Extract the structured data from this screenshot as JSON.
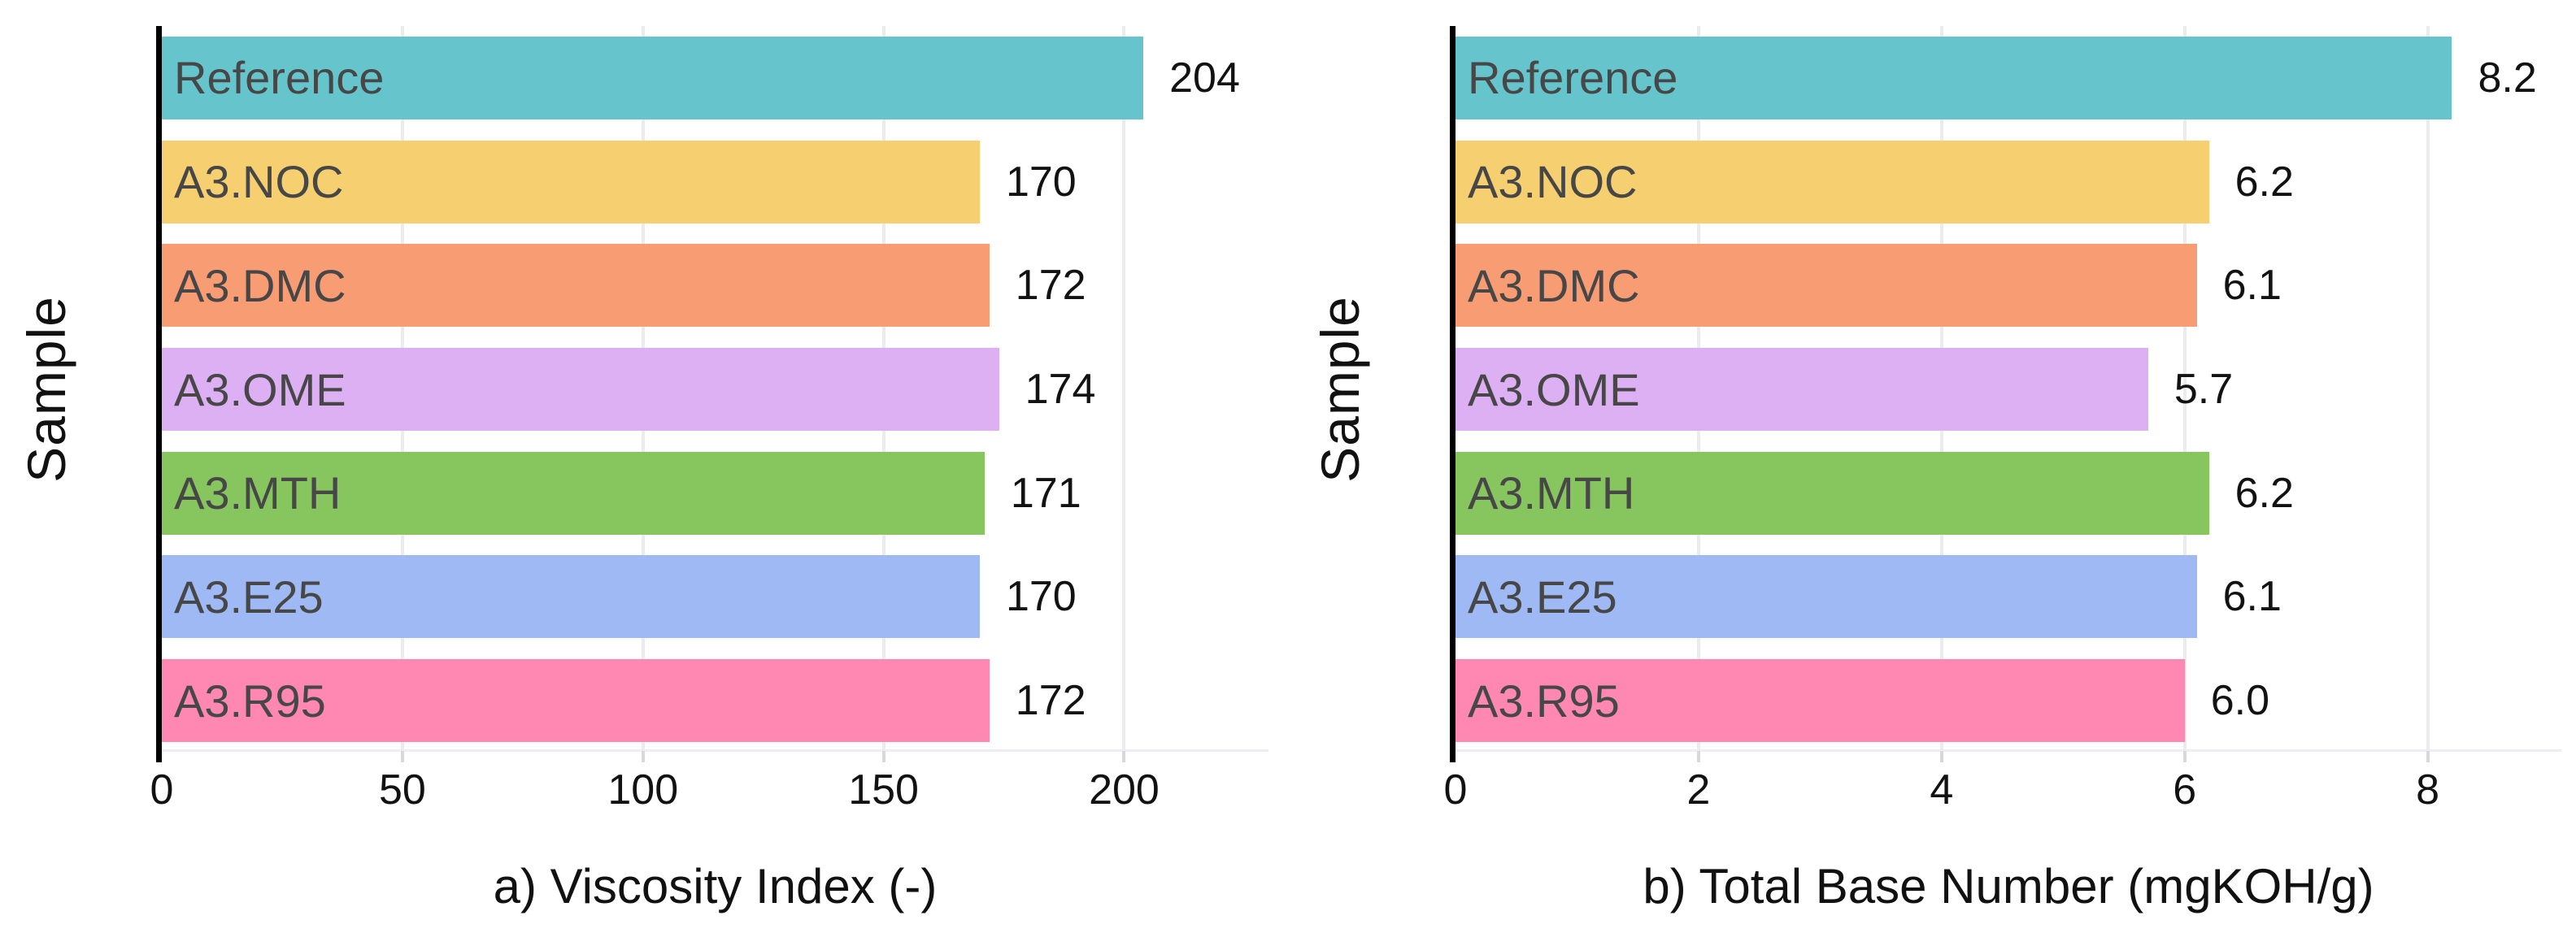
{
  "figure": {
    "background": "#ffffff",
    "text_color": "#111111",
    "bar_label_color": "#474747",
    "grid_color": "#ebebf0",
    "axis_line_color": "#000000"
  },
  "chart_data": [
    {
      "type": "bar",
      "orientation": "horizontal",
      "title": "a) Viscosity Index (-)",
      "ylabel": "Sample",
      "categories": [
        "Reference",
        "A3.NOC",
        "A3.DMC",
        "A3.OME",
        "A3.MTH",
        "A3.E25",
        "A3.R95"
      ],
      "values": [
        204,
        170,
        172,
        174,
        171,
        170,
        172
      ],
      "value_labels": [
        "204",
        "170",
        "172",
        "174",
        "171",
        "170",
        "172"
      ],
      "bar_colors": [
        "#66C5CC",
        "#F6CF71",
        "#F89C74",
        "#DCB0F2",
        "#87C55F",
        "#9EB9F3",
        "#FE88B1"
      ],
      "xtick_labels": [
        "0",
        "50",
        "100",
        "150",
        "200"
      ],
      "xtick_values": [
        0,
        50,
        100,
        150,
        200
      ],
      "xlim": [
        0,
        230
      ],
      "grid": "vertical",
      "legend": "none"
    },
    {
      "type": "bar",
      "orientation": "horizontal",
      "title": "b) Total Base Number (mgKOH/g)",
      "ylabel": "Sample",
      "categories": [
        "Reference",
        "A3.NOC",
        "A3.DMC",
        "A3.OME",
        "A3.MTH",
        "A3.E25",
        "A3.R95"
      ],
      "values": [
        8.2,
        6.2,
        6.1,
        5.7,
        6.2,
        6.1,
        6.0
      ],
      "value_labels": [
        "8.2",
        "6.2",
        "6.1",
        "5.7",
        "6.2",
        "6.1",
        "6.0"
      ],
      "bar_colors": [
        "#66C5CC",
        "#F6CF71",
        "#F89C74",
        "#DCB0F2",
        "#87C55F",
        "#9EB9F3",
        "#FE88B1"
      ],
      "xtick_labels": [
        "0",
        "2",
        "4",
        "6",
        "8"
      ],
      "xtick_values": [
        0,
        2,
        4,
        6,
        8
      ],
      "xlim": [
        0,
        9.1
      ],
      "grid": "vertical",
      "legend": "none"
    }
  ]
}
